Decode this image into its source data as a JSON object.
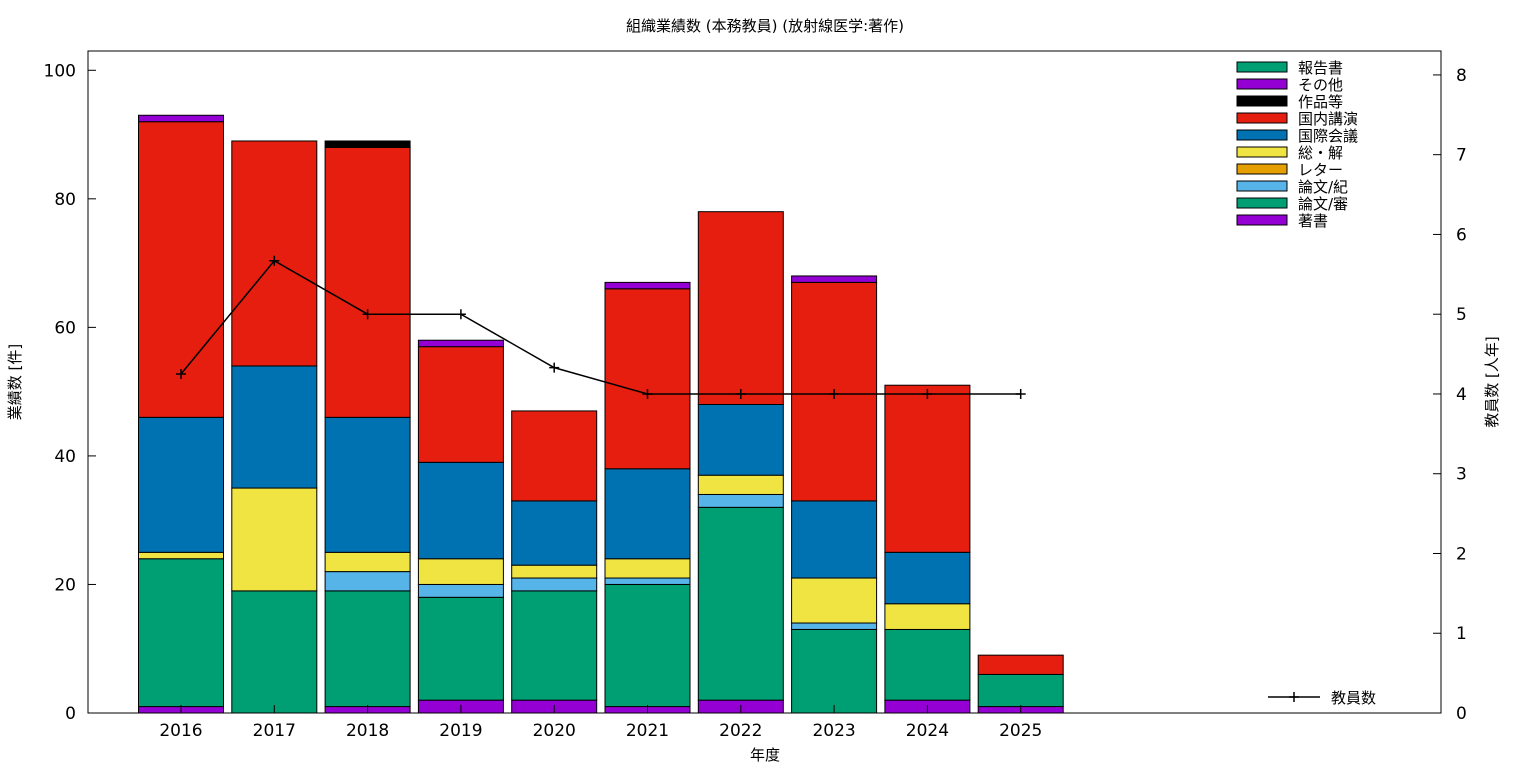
{
  "chart_data": {
    "type": "bar",
    "title": "組織業績数 (本務教員) (放射線医学:著作)",
    "xlabel": "年度",
    "ylabel": "業績数 [件]",
    "y2label": "教員数 [人年]",
    "categories": [
      "2016",
      "2017",
      "2018",
      "2019",
      "2020",
      "2021",
      "2022",
      "2023",
      "2024",
      "2025"
    ],
    "ylim": [
      0,
      103
    ],
    "y2lim": [
      0,
      8.3
    ],
    "yticks": [
      0,
      20,
      40,
      60,
      80,
      100
    ],
    "y2ticks": [
      0,
      1,
      2,
      3,
      4,
      5,
      6,
      7,
      8
    ],
    "grid": false,
    "legend_position": "top-right",
    "stacked_series": [
      {
        "name": "著書",
        "color": "#9400d3",
        "values": [
          1,
          0,
          1,
          2,
          2,
          1,
          2,
          0,
          2,
          1
        ]
      },
      {
        "name": "論文/審",
        "color": "#009e73",
        "values": [
          23,
          19,
          18,
          16,
          17,
          19,
          30,
          13,
          11,
          5
        ]
      },
      {
        "name": "論文/紀",
        "color": "#56b4e9",
        "values": [
          0,
          0,
          3,
          2,
          2,
          1,
          2,
          1,
          0,
          0
        ]
      },
      {
        "name": "レター",
        "color": "#e69f00",
        "values": [
          0,
          0,
          0,
          0,
          0,
          0,
          0,
          0,
          0,
          0
        ]
      },
      {
        "name": "総・解",
        "color": "#f0e442",
        "values": [
          1,
          16,
          3,
          4,
          2,
          3,
          3,
          7,
          4,
          0
        ]
      },
      {
        "name": "国際会議",
        "color": "#0072b2",
        "values": [
          21,
          19,
          21,
          15,
          10,
          14,
          11,
          12,
          8,
          0
        ]
      },
      {
        "name": "国内講演",
        "color": "#e51e10",
        "values": [
          46,
          35,
          42,
          18,
          14,
          28,
          30,
          34,
          26,
          3
        ]
      },
      {
        "name": "作品等",
        "color": "#000000",
        "values": [
          0,
          0,
          1,
          0,
          0,
          0,
          0,
          0,
          0,
          0
        ]
      },
      {
        "name": "その他",
        "color": "#9400d3",
        "values": [
          1,
          0,
          0,
          1,
          0,
          1,
          0,
          1,
          0,
          0
        ]
      },
      {
        "name": "報告書",
        "color": "#009e73",
        "values": [
          0,
          0,
          0,
          0,
          0,
          0,
          0,
          0,
          0,
          0
        ]
      }
    ],
    "legend_order": [
      "報告書",
      "その他",
      "作品等",
      "国内講演",
      "国際会議",
      "総・解",
      "レター",
      "論文/紀",
      "論文/審",
      "著書"
    ],
    "line_series": {
      "name": "教員数",
      "color": "#000000",
      "axis": "right",
      "values": [
        4.25,
        5.67,
        5.0,
        5.0,
        4.33,
        4.0,
        4.0,
        4.0,
        4.0,
        4.0
      ]
    }
  }
}
